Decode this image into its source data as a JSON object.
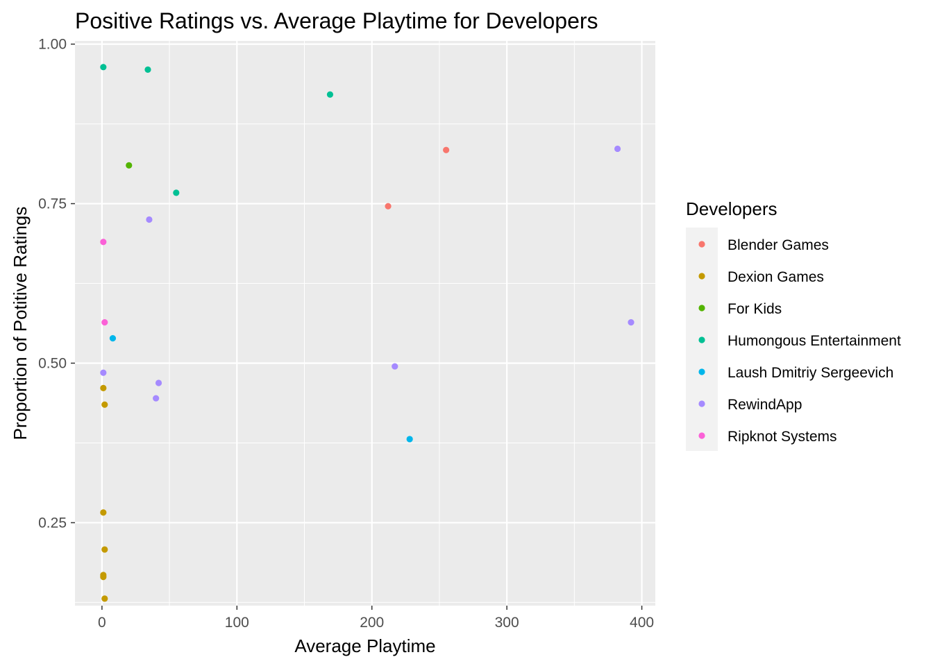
{
  "chart_data": {
    "type": "scatter",
    "title": "Positive Ratings vs. Average Playtime for Developers",
    "xlabel": "Average Playtime",
    "ylabel": "Proportion of Potitive Ratings",
    "xlim": [
      -20,
      410
    ],
    "ylim": [
      0.12,
      1.005
    ],
    "x_ticks": [
      0,
      100,
      200,
      300,
      400
    ],
    "x_tick_labels": [
      "0",
      "100",
      "200",
      "300",
      "400"
    ],
    "y_ticks": [
      0.25,
      0.5,
      0.75,
      1.0
    ],
    "y_tick_labels": [
      "0.25",
      "0.50",
      "0.75",
      "1.00"
    ],
    "grid": true,
    "legend": {
      "title": "Developers",
      "position": "right"
    },
    "series": [
      {
        "name": "Blender Games",
        "color": "#F8766D",
        "points": [
          [
            255,
            0.834
          ],
          [
            212,
            0.746
          ]
        ]
      },
      {
        "name": "Dexion Games",
        "color": "#C49A00",
        "points": [
          [
            1,
            0.461
          ],
          [
            2,
            0.435
          ],
          [
            1,
            0.266
          ],
          [
            2,
            0.208
          ],
          [
            1,
            0.168
          ],
          [
            1,
            0.165
          ],
          [
            2,
            0.131
          ]
        ]
      },
      {
        "name": "For Kids",
        "color": "#53B400",
        "points": [
          [
            20,
            0.81
          ]
        ]
      },
      {
        "name": "Humongous Entertainment",
        "color": "#00C094",
        "points": [
          [
            1,
            0.964
          ],
          [
            34,
            0.96
          ],
          [
            169,
            0.921
          ],
          [
            55,
            0.767
          ]
        ]
      },
      {
        "name": "Laush Dmitriy Sergeevich",
        "color": "#00B6EB",
        "points": [
          [
            8,
            0.539
          ],
          [
            228,
            0.381
          ]
        ]
      },
      {
        "name": "RewindApp",
        "color": "#A58AFF",
        "points": [
          [
            382,
            0.836
          ],
          [
            35,
            0.725
          ],
          [
            392,
            0.564
          ],
          [
            217,
            0.495
          ],
          [
            1,
            0.485
          ],
          [
            42,
            0.469
          ],
          [
            40,
            0.445
          ]
        ]
      },
      {
        "name": "Ripknot Systems",
        "color": "#FB61D7",
        "points": [
          [
            1,
            0.69
          ],
          [
            2,
            0.564
          ]
        ]
      }
    ]
  }
}
